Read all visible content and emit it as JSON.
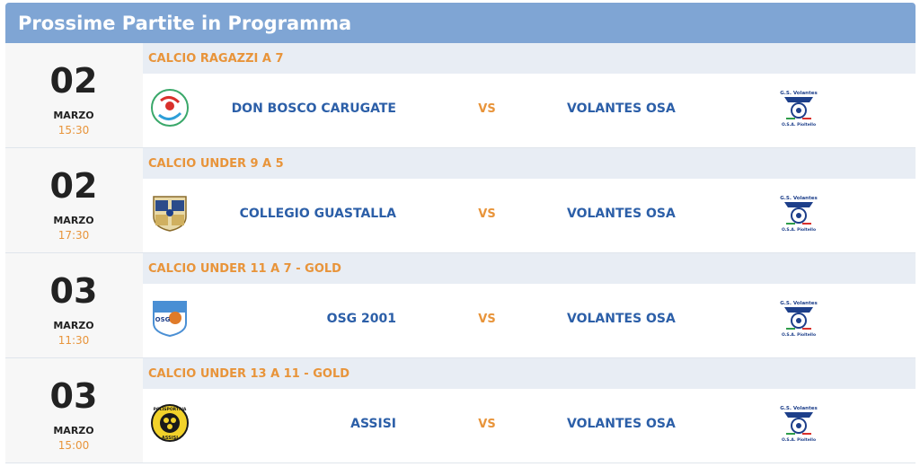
{
  "widget": {
    "title": "Prossime Partite in Programma"
  },
  "matches": [
    {
      "day": "02",
      "month": "MARZO",
      "time": "15:30",
      "category": "CALCIO RAGAZZI A 7",
      "home_team": "DON BOSCO CARUGATE",
      "vs": "VS",
      "away_team": "VOLANTES OSA",
      "home_logo": "don-bosco-logo",
      "away_logo": "gs-volantes-logo",
      "away_logo_text_top": "G.S. Volantes",
      "away_logo_text_bottom": "O.S.A. Pioltello"
    },
    {
      "day": "02",
      "month": "MARZO",
      "time": "17:30",
      "category": "CALCIO UNDER 9 A 5",
      "home_team": "COLLEGIO GUASTALLA",
      "vs": "VS",
      "away_team": "VOLANTES OSA",
      "home_logo": "collegio-guastalla-crest",
      "away_logo": "gs-volantes-logo",
      "away_logo_text_top": "G.S. Volantes",
      "away_logo_text_bottom": "O.S.A. Pioltello"
    },
    {
      "day": "03",
      "month": "MARZO",
      "time": "11:30",
      "category": "CALCIO UNDER 11 A 7 - GOLD",
      "home_team": "OSG 2001",
      "vs": "VS",
      "away_team": "VOLANTES OSA",
      "home_logo": "osg-2001-shield",
      "away_logo": "gs-volantes-logo",
      "home_logo_text": "OSG",
      "away_logo_text_top": "G.S. Volantes",
      "away_logo_text_bottom": "O.S.A. Pioltello"
    },
    {
      "day": "03",
      "month": "MARZO",
      "time": "15:00",
      "category": "CALCIO UNDER 13 A 11 - GOLD",
      "home_team": "ASSISI",
      "vs": "VS",
      "away_team": "VOLANTES OSA",
      "home_logo": "polisportiva-assisi-badge",
      "away_logo": "gs-volantes-logo",
      "home_logo_text_top": "POLISPORTIVA",
      "home_logo_text_bottom": "ASSISI",
      "away_logo_text_top": "G.S. Volantes",
      "away_logo_text_bottom": "O.S.A. Pioltello"
    }
  ],
  "colors": {
    "header_bg": "#7fa5d4",
    "team_blue": "#2c5fa8",
    "accent_orange": "#e8943a",
    "category_bg": "#e8edf4"
  }
}
